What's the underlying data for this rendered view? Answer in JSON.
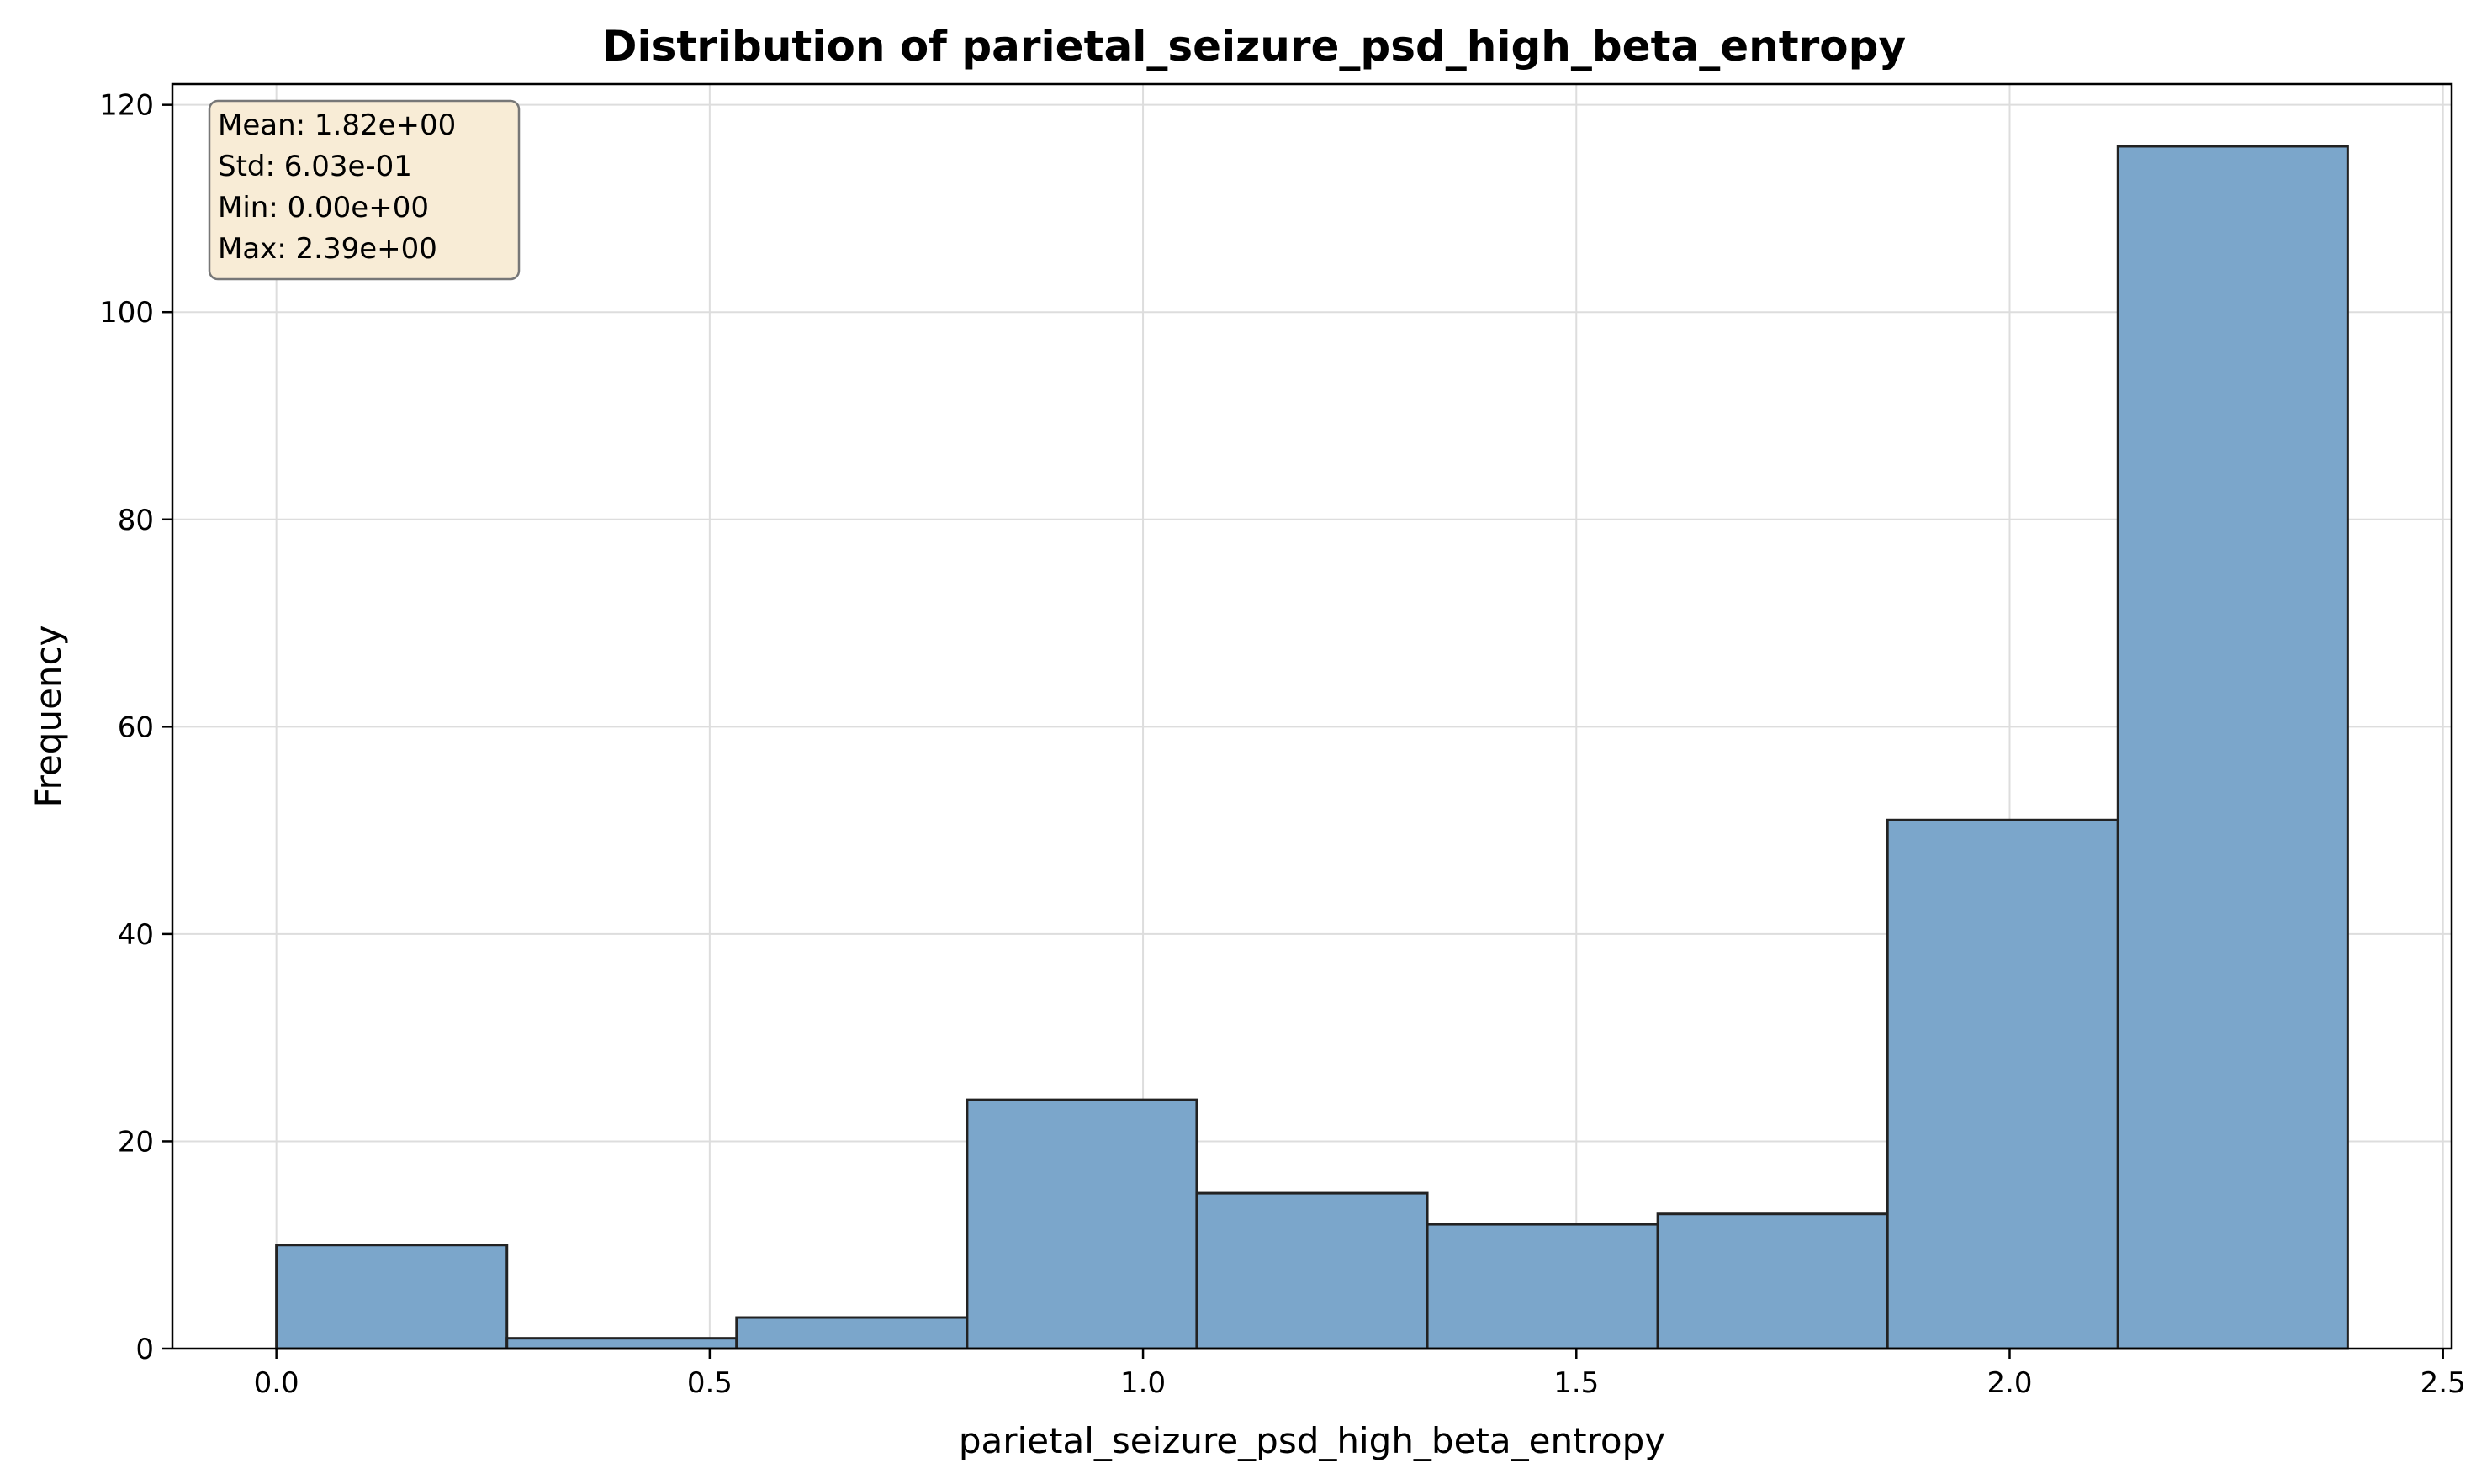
{
  "chart_data": {
    "type": "bar",
    "title": "Distribution of parietal_seizure_psd_high_beta_entropy",
    "xlabel": "parietal_seizure_psd_high_beta_entropy",
    "ylabel": "Frequency",
    "xlim": [
      -0.12,
      2.51
    ],
    "ylim": [
      0,
      122
    ],
    "grid": true,
    "x_ticks": [
      {
        "value": 0.0,
        "label": "0.0"
      },
      {
        "value": 0.5,
        "label": "0.5"
      },
      {
        "value": 1.0,
        "label": "1.0"
      },
      {
        "value": 1.5,
        "label": "1.5"
      },
      {
        "value": 2.0,
        "label": "2.0"
      },
      {
        "value": 2.5,
        "label": "2.5"
      }
    ],
    "y_ticks": [
      {
        "value": 0,
        "label": "0"
      },
      {
        "value": 20,
        "label": "20"
      },
      {
        "value": 40,
        "label": "40"
      },
      {
        "value": 60,
        "label": "60"
      },
      {
        "value": 80,
        "label": "80"
      },
      {
        "value": 100,
        "label": "100"
      },
      {
        "value": 120,
        "label": "120"
      }
    ],
    "bin_edges": [
      0.0,
      0.266,
      0.531,
      0.797,
      1.062,
      1.328,
      1.594,
      1.859,
      2.125,
      2.39
    ],
    "values": [
      10,
      1,
      3,
      24,
      15,
      12,
      13,
      51,
      116
    ],
    "bar_color": "#7ba6cb",
    "edge_color": "#222222",
    "stats_box": {
      "lines": [
        "Mean: 1.82e+00",
        "Std: 6.03e-01",
        "Min: 0.00e+00",
        "Max: 2.39e+00"
      ],
      "background": "#f8ecd6",
      "placement": "top-left"
    }
  }
}
